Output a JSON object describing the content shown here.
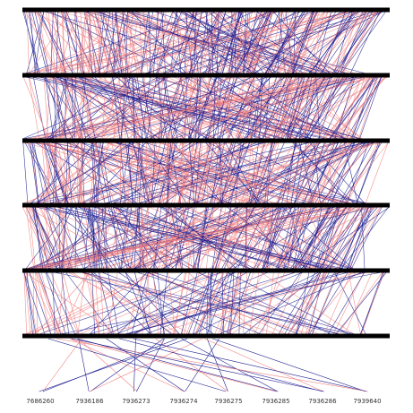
{
  "labels": [
    "7686260",
    "7936186",
    "7936273",
    "7936274",
    "7936275",
    "7936285",
    "7936286",
    "7939640"
  ]
}
